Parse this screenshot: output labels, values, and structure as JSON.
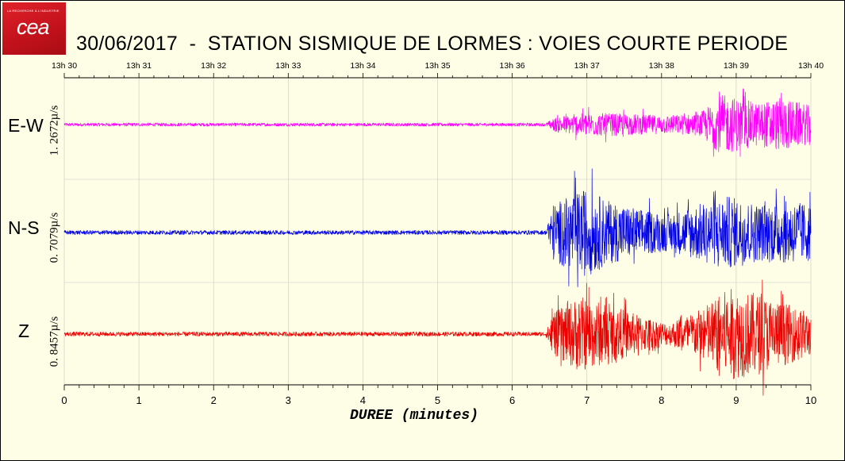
{
  "logo": {
    "small_text": "LA RECHERCHE À L'INDUSTRIE",
    "mark": "cea"
  },
  "title": "30/06/2017  -  STATION SISMIQUE DE LORMES : VOIES COURTE PERIODE",
  "colors": {
    "ew": "#ff00ff",
    "ns": "#0000e6",
    "z": "#ee0000",
    "background": "#fefee6",
    "grid": "#c8c8c8"
  },
  "chart_data": {
    "type": "line",
    "title": "30/06/2017  -  STATION SISMIQUE DE LORMES : VOIES COURTE PERIODE",
    "xlabel": "DUREE (minutes)",
    "x_ticks": [
      "0",
      "1",
      "2",
      "3",
      "4",
      "5",
      "6",
      "7",
      "8",
      "9",
      "10"
    ],
    "top_ticks": [
      "13h 30",
      "13h 31",
      "13h 32",
      "13h 33",
      "13h 34",
      "13h 35",
      "13h 36",
      "13h 37",
      "13h 38",
      "13h 39",
      "13h 40"
    ],
    "xlim": [
      0,
      10
    ],
    "grid": true,
    "series": [
      {
        "name": "E-W",
        "scale": "1. 2672µ/s",
        "onset_min": 6.5,
        "envelope": [
          [
            0,
            0.03
          ],
          [
            6.45,
            0.03
          ],
          [
            6.6,
            0.15
          ],
          [
            7.0,
            0.22
          ],
          [
            7.5,
            0.2
          ],
          [
            8.0,
            0.17
          ],
          [
            8.5,
            0.2
          ],
          [
            8.8,
            0.55
          ],
          [
            9.0,
            0.5
          ],
          [
            9.3,
            0.4
          ],
          [
            9.6,
            0.5
          ],
          [
            10,
            0.35
          ]
        ]
      },
      {
        "name": "N-S",
        "scale": "0. 7079µ/s",
        "onset_min": 6.5,
        "envelope": [
          [
            0,
            0.04
          ],
          [
            6.45,
            0.04
          ],
          [
            6.55,
            0.55
          ],
          [
            7.0,
            0.85
          ],
          [
            7.3,
            0.6
          ],
          [
            7.7,
            0.45
          ],
          [
            8.1,
            0.35
          ],
          [
            8.5,
            0.55
          ],
          [
            8.9,
            0.7
          ],
          [
            9.3,
            0.55
          ],
          [
            9.7,
            0.6
          ],
          [
            10,
            0.55
          ]
        ]
      },
      {
        "name": "Z",
        "scale": "0. 8457µ/s",
        "onset_min": 6.5,
        "envelope": [
          [
            0,
            0.04
          ],
          [
            6.45,
            0.04
          ],
          [
            6.55,
            0.4
          ],
          [
            6.9,
            0.7
          ],
          [
            7.3,
            0.55
          ],
          [
            7.7,
            0.35
          ],
          [
            8.1,
            0.2
          ],
          [
            8.5,
            0.45
          ],
          [
            8.9,
            0.85
          ],
          [
            9.3,
            0.75
          ],
          [
            9.7,
            0.55
          ],
          [
            10,
            0.4
          ]
        ]
      }
    ]
  }
}
